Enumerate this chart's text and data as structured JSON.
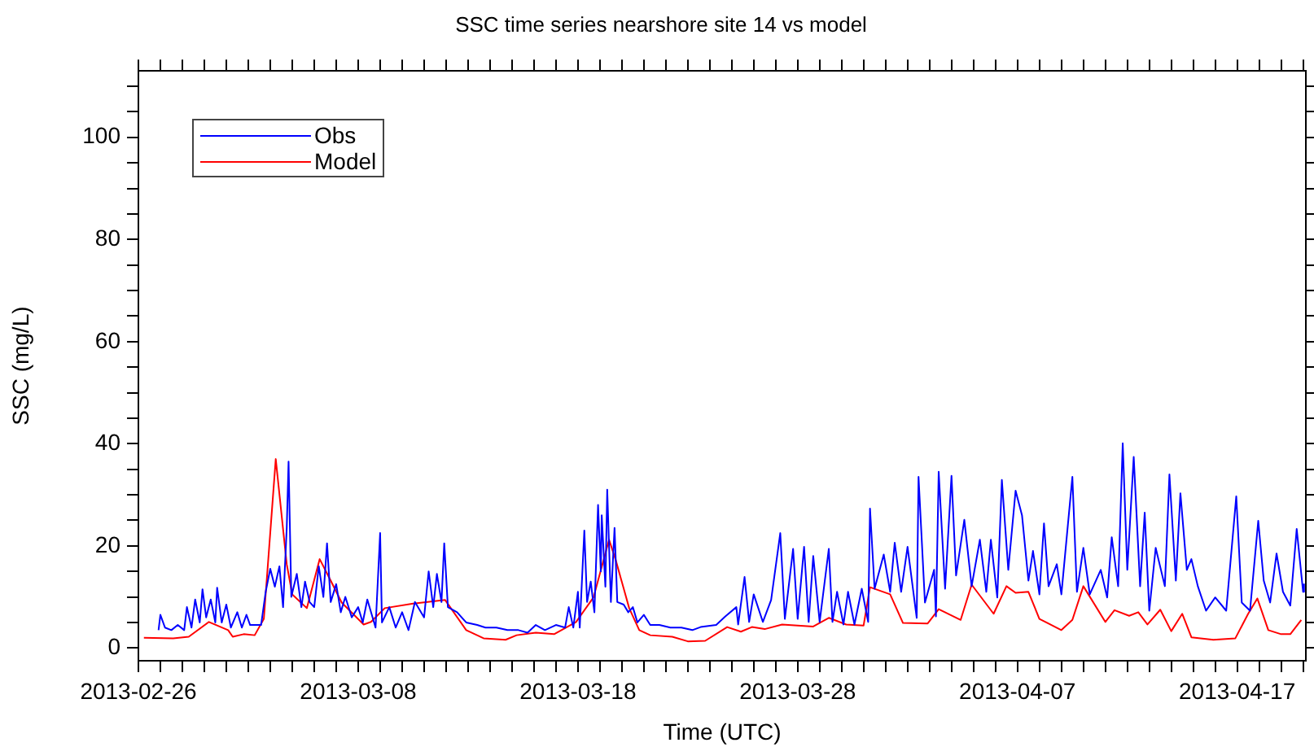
{
  "chart_data": {
    "type": "line",
    "title": "SSC time series nearshore site 14 vs model",
    "xlabel": "Time (UTC)",
    "ylabel": "SSC (mg/L)",
    "xlim": [
      "2013-02-26",
      "2013-04-20T03:00"
    ],
    "xticks": [
      {
        "value": "2013-02-26",
        "label": "2013-02-26"
      },
      {
        "value": "2013-02-27",
        "label": null
      },
      {
        "value": "2013-02-28",
        "label": null
      },
      {
        "value": "2013-03-01",
        "label": null
      },
      {
        "value": "2013-03-02",
        "label": null
      },
      {
        "value": "2013-03-03",
        "label": null
      },
      {
        "value": "2013-03-04",
        "label": null
      },
      {
        "value": "2013-03-05",
        "label": null
      },
      {
        "value": "2013-03-06",
        "label": null
      },
      {
        "value": "2013-03-07",
        "label": null
      },
      {
        "value": "2013-03-08",
        "label": "2013-03-08"
      },
      {
        "value": "2013-03-09",
        "label": null
      },
      {
        "value": "2013-03-10",
        "label": null
      },
      {
        "value": "2013-03-11",
        "label": null
      },
      {
        "value": "2013-03-12",
        "label": null
      },
      {
        "value": "2013-03-13",
        "label": null
      },
      {
        "value": "2013-03-14",
        "label": null
      },
      {
        "value": "2013-03-15",
        "label": null
      },
      {
        "value": "2013-03-16",
        "label": null
      },
      {
        "value": "2013-03-17",
        "label": null
      },
      {
        "value": "2013-03-18",
        "label": "2013-03-18"
      },
      {
        "value": "2013-03-19",
        "label": null
      },
      {
        "value": "2013-03-20",
        "label": null
      },
      {
        "value": "2013-03-21",
        "label": null
      },
      {
        "value": "2013-03-22",
        "label": null
      },
      {
        "value": "2013-03-23",
        "label": null
      },
      {
        "value": "2013-03-24",
        "label": null
      },
      {
        "value": "2013-03-25",
        "label": null
      },
      {
        "value": "2013-03-26",
        "label": null
      },
      {
        "value": "2013-03-27",
        "label": null
      },
      {
        "value": "2013-03-28",
        "label": "2013-03-28"
      },
      {
        "value": "2013-03-29",
        "label": null
      },
      {
        "value": "2013-03-30",
        "label": null
      },
      {
        "value": "2013-03-31",
        "label": null
      },
      {
        "value": "2013-04-01",
        "label": null
      },
      {
        "value": "2013-04-02",
        "label": null
      },
      {
        "value": "2013-04-03",
        "label": null
      },
      {
        "value": "2013-04-04",
        "label": null
      },
      {
        "value": "2013-04-05",
        "label": null
      },
      {
        "value": "2013-04-06",
        "label": null
      },
      {
        "value": "2013-04-07",
        "label": "2013-04-07"
      },
      {
        "value": "2013-04-08",
        "label": null
      },
      {
        "value": "2013-04-09",
        "label": null
      },
      {
        "value": "2013-04-10",
        "label": null
      },
      {
        "value": "2013-04-11",
        "label": null
      },
      {
        "value": "2013-04-12",
        "label": null
      },
      {
        "value": "2013-04-13",
        "label": null
      },
      {
        "value": "2013-04-14",
        "label": null
      },
      {
        "value": "2013-04-15",
        "label": null
      },
      {
        "value": "2013-04-16",
        "label": null
      },
      {
        "value": "2013-04-17",
        "label": "2013-04-17"
      },
      {
        "value": "2013-04-18",
        "label": null
      },
      {
        "value": "2013-04-19",
        "label": null
      },
      {
        "value": "2013-04-20",
        "label": null
      }
    ],
    "ylim": [
      -2.5,
      113
    ],
    "yticks": [
      0,
      {
        "value": 5,
        "label": null
      },
      {
        "value": 10,
        "label": null
      },
      {
        "value": 15,
        "label": null
      },
      20,
      {
        "value": 25,
        "label": null
      },
      {
        "value": 30,
        "label": null
      },
      {
        "value": 35,
        "label": null
      },
      40,
      {
        "value": 45,
        "label": null
      },
      {
        "value": 50,
        "label": null
      },
      {
        "value": 55,
        "label": null
      },
      60,
      {
        "value": 65,
        "label": null
      },
      {
        "value": 70,
        "label": null
      },
      {
        "value": 75,
        "label": null
      },
      80,
      {
        "value": 85,
        "label": null
      },
      {
        "value": 90,
        "label": null
      },
      {
        "value": 95,
        "label": null
      },
      100,
      {
        "value": 105,
        "label": null
      },
      {
        "value": 110,
        "label": null
      }
    ],
    "grid": false,
    "legend": "top left",
    "marker": "none",
    "line_style": "solid",
    "series": [
      {
        "name": "Obs",
        "color": "#0000ff",
        "x": [
          "2013-02-26T22:00",
          "2013-02-27T00:00",
          "2013-02-27T05:00",
          "2013-02-27T12:00",
          "2013-02-27T19:00",
          "2013-02-28T02:00",
          "2013-02-28T05:00",
          "2013-02-28T10:00",
          "2013-02-28T14:00",
          "2013-02-28T19:00",
          "2013-02-28T22:00",
          "2013-03-01T02:00",
          "2013-03-01T07:00",
          "2013-03-01T12:00",
          "2013-03-01T14:00",
          "2013-03-01T19:00",
          "2013-03-02T00:00",
          "2013-03-02T05:00",
          "2013-03-02T12:00",
          "2013-03-02T17:00",
          "2013-03-02T22:00",
          "2013-03-03T02:00",
          "2013-03-03T14:00",
          "2013-03-03T19:00",
          "2013-03-04T00:00",
          "2013-03-04T05:00",
          "2013-03-04T10:00",
          "2013-03-04T14:00",
          "2013-03-04T18:00",
          "2013-03-04T20:00",
          "2013-03-04T23:00",
          "2013-03-05T05:00",
          "2013-03-05T10:00",
          "2013-03-05T14:00",
          "2013-03-05T19:00",
          "2013-03-06T00:00",
          "2013-03-06T05:00",
          "2013-03-06T10:00",
          "2013-03-06T14:00",
          "2013-03-06T18:00",
          "2013-03-07T00:00",
          "2013-03-07T05:00",
          "2013-03-07T10:00",
          "2013-03-07T17:00",
          "2013-03-08T00:00",
          "2013-03-08T05:00",
          "2013-03-08T10:00",
          "2013-03-08T19:00",
          "2013-03-09T00:00",
          "2013-03-09T02:00",
          "2013-03-09T10:00",
          "2013-03-09T17:00",
          "2013-03-10T00:00",
          "2013-03-10T07:00",
          "2013-03-10T14:00",
          "2013-03-11T00:00",
          "2013-03-11T05:00",
          "2013-03-11T10:00",
          "2013-03-11T14:00",
          "2013-03-11T19:00",
          "2013-03-11T22:00",
          "2013-03-12T02:00",
          "2013-03-12T12:00",
          "2013-03-12T22:00",
          "2013-03-13T10:00",
          "2013-03-13T19:00",
          "2013-03-14T07:00",
          "2013-03-14T19:00",
          "2013-03-15T07:00",
          "2013-03-15T17:00",
          "2013-03-16T02:00",
          "2013-03-16T12:00",
          "2013-03-17T00:00",
          "2013-03-17T10:00",
          "2013-03-17T14:00",
          "2013-03-17T19:00",
          "2013-03-18T00:00",
          "2013-03-18T02:00",
          "2013-03-18T07:00",
          "2013-03-18T10:00",
          "2013-03-18T14:00",
          "2013-03-18T18:00",
          "2013-03-18T22:00",
          "2013-03-19T01:00",
          "2013-03-19T02:00",
          "2013-03-19T06:00",
          "2013-03-19T08:00",
          "2013-03-19T12:00",
          "2013-03-19T16:00",
          "2013-03-19T19:00",
          "2013-03-20T02:00",
          "2013-03-20T07:00",
          "2013-03-20T12:00",
          "2013-03-20T17:00",
          "2013-03-21T00:00",
          "2013-03-21T07:00",
          "2013-03-21T17:00",
          "2013-03-22T05:00",
          "2013-03-22T17:00",
          "2013-03-23T05:00",
          "2013-03-23T14:00",
          "2013-03-24T07:00",
          "2013-03-24T17:00",
          "2013-03-25T05:00",
          "2013-03-25T07:00",
          "2013-03-25T14:00",
          "2013-03-25T19:00",
          "2013-03-26T00:00",
          "2013-03-26T10:00",
          "2013-03-26T19:00",
          "2013-03-27T05:00",
          "2013-03-27T10:00",
          "2013-03-27T19:00",
          "2013-03-28T00:00",
          "2013-03-28T07:00",
          "2013-03-28T12:00",
          "2013-03-28T17:00",
          "2013-03-29T00:00",
          "2013-03-29T10:00",
          "2013-03-29T14:00",
          "2013-03-29T19:00",
          "2013-03-30T02:00",
          "2013-03-30T07:00",
          "2013-03-30T14:00",
          "2013-03-30T22:00",
          "2013-03-31T05:00",
          "2013-03-31T07:00",
          "2013-03-31T12:00",
          "2013-03-31T22:00",
          "2013-04-01T05:00",
          "2013-04-01T10:00",
          "2013-04-01T17:00",
          "2013-04-02T00:00",
          "2013-04-02T10:00",
          "2013-04-02T12:00",
          "2013-04-02T19:00",
          "2013-04-03T05:00",
          "2013-04-03T07:00",
          "2013-04-03T10:00",
          "2013-04-03T17:00",
          "2013-04-04T00:00",
          "2013-04-04T05:00",
          "2013-04-04T14:00",
          "2013-04-04T22:00",
          "2013-04-05T07:00",
          "2013-04-05T14:00",
          "2013-04-05T19:00",
          "2013-04-06T02:00",
          "2013-04-06T07:00",
          "2013-04-06T14:00",
          "2013-04-06T22:00",
          "2013-04-07T05:00",
          "2013-04-07T12:00",
          "2013-04-07T17:00",
          "2013-04-08T00:00",
          "2013-04-08T05:00",
          "2013-04-08T10:00",
          "2013-04-08T19:00",
          "2013-04-09T00:00",
          "2013-04-09T12:00",
          "2013-04-09T17:00",
          "2013-04-10T00:00",
          "2013-04-10T07:00",
          "2013-04-10T19:00",
          "2013-04-11T02:00",
          "2013-04-11T07:00",
          "2013-04-11T14:00",
          "2013-04-11T19:00",
          "2013-04-12T00:00",
          "2013-04-12T07:00",
          "2013-04-12T14:00",
          "2013-04-12T19:00",
          "2013-04-13T00:00",
          "2013-04-13T07:00",
          "2013-04-13T17:00",
          "2013-04-13T22:00",
          "2013-04-14T05:00",
          "2013-04-14T10:00",
          "2013-04-14T17:00",
          "2013-04-14T22:00",
          "2013-04-15T05:00",
          "2013-04-15T14:00",
          "2013-04-16T00:00",
          "2013-04-16T12:00",
          "2013-04-16T23:00",
          "2013-04-17T05:00",
          "2013-04-17T14:00",
          "2013-04-17T23:00",
          "2013-04-18T05:00",
          "2013-04-18T12:00",
          "2013-04-18T19:00",
          "2013-04-19T02:00",
          "2013-04-19T10:00",
          "2013-04-19T17:00",
          "2013-04-20T00:00",
          "2013-04-20T01:00"
        ],
        "values": [
          3.5,
          6.5,
          4,
          3.5,
          4.5,
          3.5,
          8,
          4,
          9.5,
          5,
          11.5,
          6,
          9.5,
          5,
          11.8,
          5,
          8.5,
          4,
          7,
          4,
          6.5,
          4.5,
          4.5,
          11,
          15.5,
          12,
          16,
          8,
          23.5,
          36.5,
          10,
          14.5,
          8,
          13,
          9,
          8,
          16,
          10,
          20.5,
          9,
          12.5,
          7,
          10,
          6,
          8,
          5,
          9.5,
          4,
          22.5,
          5,
          8,
          4,
          7,
          3.5,
          9,
          6,
          15,
          8,
          14.5,
          9,
          20.5,
          8,
          7,
          5,
          4.5,
          4,
          4,
          3.5,
          3.5,
          3,
          4.5,
          3.5,
          4.5,
          4,
          8,
          4,
          11,
          4,
          23,
          9,
          13,
          7,
          28,
          15,
          26,
          12,
          31,
          9,
          23.5,
          9,
          8.5,
          7,
          8,
          5,
          6.5,
          4.5,
          4.5,
          4,
          4,
          3.5,
          4.1,
          4.5,
          6.2,
          8.0,
          4.6,
          13.9,
          5.1,
          10.5,
          5.1,
          9.4,
          22.5,
          5.7,
          19.4,
          5.7,
          19.8,
          5.1,
          18,
          5.1,
          19.4,
          5.1,
          11.0,
          4.6,
          11.0,
          4.6,
          11.6,
          5.1,
          27.3,
          11.6,
          18.3,
          11.0,
          20.6,
          11.0,
          19.8,
          5.9,
          33.5,
          8.9,
          15.3,
          6.2,
          34.5,
          11.6,
          33.7,
          14.2,
          25.1,
          12.1,
          21.2,
          11.0,
          21.2,
          9.9,
          32.9,
          15.3,
          30.8,
          26,
          13.2,
          19,
          10.5,
          24.4,
          12.1,
          16.4,
          10.5,
          33.5,
          11.0,
          19.6,
          10.5,
          15.3,
          9.9,
          21.7,
          12.1,
          40.1,
          15.3,
          37.4,
          12.1,
          26.5,
          7.3,
          19.6,
          12.1,
          34,
          13.2,
          30.3,
          15.3,
          17.4,
          12.1,
          7.3,
          9.9,
          7.3,
          29.7,
          8.9,
          7.3,
          24.9,
          13.2,
          8.9,
          18.5,
          11.0,
          8.3,
          23.3,
          11.0,
          12.6
        ]
      },
      {
        "name": "Model",
        "color": "#ff0000",
        "x": [
          "2013-02-26T06:00",
          "2013-02-27T14:00",
          "2013-02-28T07:00",
          "2013-03-01T05:00",
          "2013-03-02T02:00",
          "2013-03-02T07:00",
          "2013-03-02T19:00",
          "2013-03-03T07:00",
          "2013-03-03T17:00",
          "2013-03-04T06:00",
          "2013-03-04T18:00",
          "2013-03-05T00:00",
          "2013-03-05T16:00",
          "2013-03-06T06:00",
          "2013-03-06T18:00",
          "2013-03-07T06:00",
          "2013-03-08T06:00",
          "2013-03-08T14:00",
          "2013-03-09T05:00",
          "2013-03-10T12:00",
          "2013-03-11T23:00",
          "2013-03-12T22:00",
          "2013-03-13T17:00",
          "2013-03-14T17:00",
          "2013-03-15T05:00",
          "2013-03-16T02:00",
          "2013-03-16T22:00",
          "2013-03-17T22:00",
          "2013-03-18T17:00",
          "2013-03-19T10:00",
          "2013-03-19T17:00",
          "2013-03-20T08:00",
          "2013-03-20T19:00",
          "2013-03-21T07:00",
          "2013-03-22T07:00",
          "2013-03-23T00:00",
          "2013-03-23T19:00",
          "2013-03-24T19:00",
          "2013-03-25T10:00",
          "2013-03-25T22:00",
          "2013-03-26T12:00",
          "2013-03-27T07:00",
          "2013-03-28T17:00",
          "2013-03-29T10:00",
          "2013-03-30T05:00",
          "2013-03-31T00:00",
          "2013-03-31T07:00",
          "2013-04-01T05:00",
          "2013-04-01T19:00",
          "2013-04-02T22:00",
          "2013-04-03T10:00",
          "2013-04-04T10:00",
          "2013-04-04T22:00",
          "2013-04-05T22:00",
          "2013-04-06T12:00",
          "2013-04-06T22:00",
          "2013-04-07T12:00",
          "2013-04-08T00:00",
          "2013-04-09T00:00",
          "2013-04-09T12:00",
          "2013-04-10T00:00",
          "2013-04-11T00:00",
          "2013-04-11T10:00",
          "2013-04-12T02:00",
          "2013-04-12T12:00",
          "2013-04-12T22:00",
          "2013-04-13T12:00",
          "2013-04-14T00:00",
          "2013-04-14T12:00",
          "2013-04-14T22:00",
          "2013-04-15T22:00",
          "2013-04-16T22:00",
          "2013-04-17T12:00",
          "2013-04-17T22:00",
          "2013-04-18T10:00",
          "2013-04-19T00:00",
          "2013-04-19T10:00",
          "2013-04-19T22:00"
        ],
        "values": [
          2.0,
          1.9,
          2.2,
          5.1,
          3.5,
          2.2,
          2.7,
          2.5,
          5.7,
          37,
          16.4,
          10.5,
          7.8,
          17.4,
          13.2,
          8.9,
          4.6,
          5.1,
          7.8,
          8.7,
          9.4,
          3.5,
          1.9,
          1.6,
          2.5,
          3.0,
          2.7,
          5.1,
          9.9,
          21.2,
          17.4,
          7.8,
          3.5,
          2.5,
          2.2,
          1.3,
          1.4,
          4.1,
          3.2,
          4.1,
          3.7,
          4.6,
          4.2,
          5.9,
          4.6,
          4.4,
          11.9,
          10.5,
          4.9,
          4.8,
          7.6,
          5.5,
          12.4,
          6.7,
          12.1,
          10.8,
          11.0,
          5.7,
          3.5,
          5.5,
          12.1,
          5.1,
          7.4,
          6.3,
          7.0,
          4.6,
          7.5,
          3.3,
          6.7,
          2.1,
          1.6,
          1.9,
          6.7,
          9.7,
          3.5,
          2.7,
          2.7,
          5.5
        ]
      }
    ]
  }
}
